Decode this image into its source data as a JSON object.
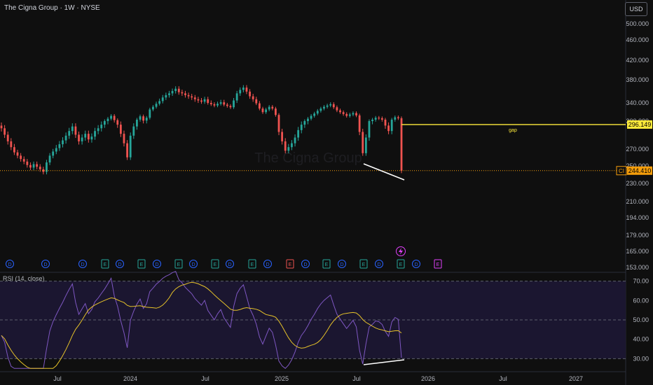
{
  "header": {
    "title": "The Cigna Group · 1W · NYSE"
  },
  "currency_button": "USD",
  "watermark": "The Cigna Group",
  "rsi_label": "RSI (14, close)",
  "chart_data": [
    {
      "type": "candlestick",
      "scale": "log",
      "price_axis_ticks": [
        "500.000",
        "460.000",
        "420.000",
        "380.000",
        "340.000",
        "300.000",
        "270.000",
        "250.000",
        "230.000",
        "210.000",
        "194.000",
        "179.000",
        "165.000",
        "153.000"
      ],
      "time_axis_ticks": [
        "Jul",
        "2024",
        "Jul",
        "2025",
        "Jul",
        "2026",
        "Jul",
        "2027"
      ],
      "price_tag": {
        "symbol": "CI",
        "value": "244.410"
      },
      "gap_line": {
        "value": "296.149",
        "label": "gap",
        "color": "#ffeb3b"
      },
      "up_color": "#26a69a",
      "down_color": "#ef5350",
      "divergence_line": {
        "color": "#ffffff"
      },
      "closes": [
        292.0,
        285.0,
        278.0,
        272.0,
        266.0,
        262.0,
        258.0,
        255.0,
        251.0,
        248.0,
        252.0,
        249.0,
        246.0,
        243.0,
        254.0,
        262.0,
        267.0,
        271.0,
        275.0,
        279.0,
        284.0,
        289.0,
        294.0,
        285.0,
        278.0,
        282.0,
        286.0,
        280.0,
        283.0,
        289.0,
        292.0,
        296.0,
        300.0,
        305.0,
        311.0,
        302.0,
        296.0,
        286.0,
        276.0,
        260.0,
        284.0,
        294.0,
        303.0,
        310.0,
        301.0,
        307.0,
        325.0,
        331.0,
        338.0,
        343.0,
        349.0,
        353.0,
        356.0,
        360.0,
        364.0,
        358.0,
        356.0,
        353.0,
        351.0,
        349.0,
        346.0,
        344.0,
        342.0,
        346.0,
        340.0,
        337.0,
        334.0,
        338.0,
        341.0,
        336.0,
        333.0,
        330.0,
        344.0,
        356.0,
        362.0,
        366.0,
        359.0,
        351.0,
        346.0,
        339.0,
        327.0,
        319.0,
        325.0,
        331.0,
        327.0,
        313.0,
        288.0,
        278.0,
        268.0,
        272.0,
        276.0,
        282.0,
        290.0,
        296.0,
        300.0,
        305.0,
        311.0,
        316.0,
        322.0,
        327.0,
        331.0,
        334.0,
        337.0,
        330.0,
        323.0,
        319.0,
        315.0,
        311.0,
        314.0,
        317.0,
        312.0,
        288.0,
        265.0,
        282.0,
        300.0,
        303.0,
        307.0,
        306.0,
        303.0,
        295.0,
        289.0,
        303.0,
        308.0,
        306.0,
        244.41
      ],
      "rsi": {
        "overbought": 70,
        "midline": 50,
        "oversold": 30,
        "ticks": [
          "70.00",
          "60.00",
          "50.00",
          "40.00",
          "30.00"
        ],
        "line_color": "#7e57c2",
        "ma_color": "#e6c229"
      },
      "events": [
        "D",
        "D",
        "D",
        "E",
        "D",
        "E",
        "D",
        "E",
        "D",
        "E",
        "D",
        "E",
        "D",
        "E",
        "D",
        "E",
        "D",
        "E",
        "D",
        "E",
        "D",
        "E"
      ]
    }
  ]
}
